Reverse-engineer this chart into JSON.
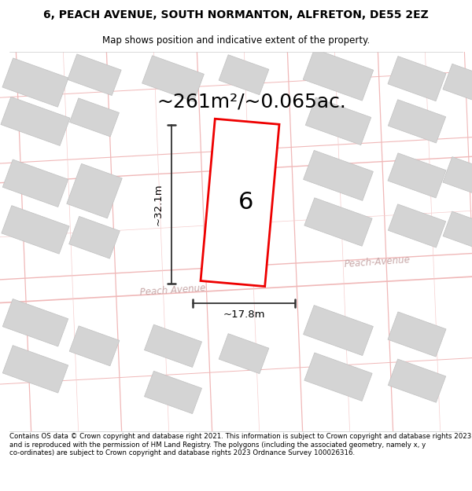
{
  "title_line1": "6, PEACH AVENUE, SOUTH NORMANTON, ALFRETON, DE55 2EZ",
  "title_line2": "Map shows position and indicative extent of the property.",
  "area_text": "~261m²/~0.065ac.",
  "label_width": "~17.8m",
  "label_height": "~32.1m",
  "plot_number": "6",
  "footer_text": "Contains OS data © Crown copyright and database right 2021. This information is subject to Crown copyright and database rights 2023 and is reproduced with the permission of HM Land Registry. The polygons (including the associated geometry, namely x, y co-ordinates) are subject to Crown copyright and database rights 2023 Ordnance Survey 100026316.",
  "map_bg": "#f2eeee",
  "plot_color": "#ee0000",
  "road_label_left": "Peach Avenue",
  "road_label_right": "Peach-Avenue",
  "block_color": "#d4d4d4",
  "block_edge": "#c0c0c0",
  "road_line_color": "#f0b8b8",
  "white_bg": "#ffffff",
  "dim_color": "#333333"
}
